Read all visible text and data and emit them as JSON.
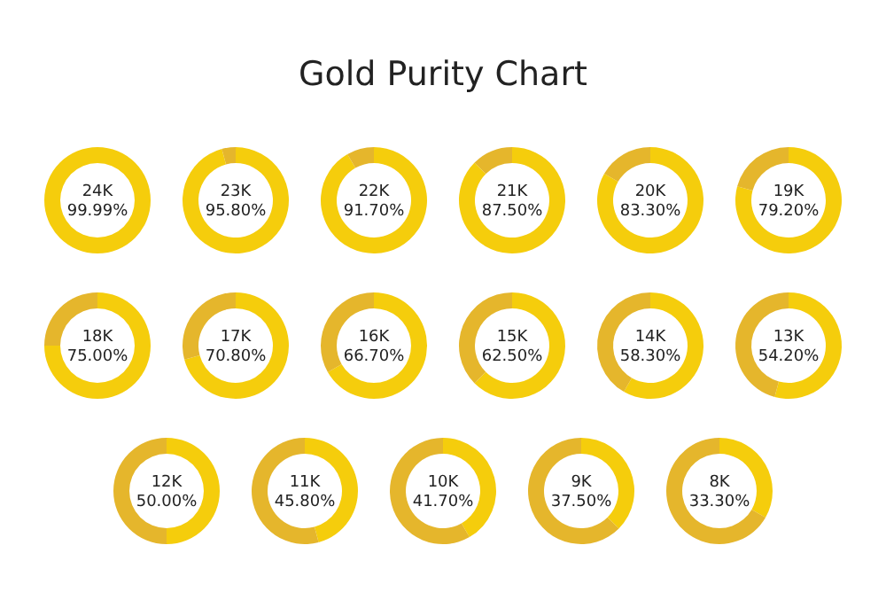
{
  "chart_data": [
    {
      "type": "other",
      "title": "Gold Purity Chart"
    },
    {
      "type": "donut",
      "title": "24K",
      "categories": [
        null
      ],
      "values": [
        99.99
      ],
      "colors": [
        "#f5cd0c"
      ],
      "annotations": [
        "99.99%"
      ]
    },
    {
      "type": "donut",
      "title": "23K",
      "categories": [
        null,
        null
      ],
      "values": [
        95.8,
        4.2
      ],
      "colors": [
        "#f5cd0c",
        "#e5b62c"
      ],
      "annotations": [
        "95.80%"
      ]
    },
    {
      "type": "donut",
      "title": "22K",
      "categories": [
        null,
        null
      ],
      "values": [
        91.7,
        8.3
      ],
      "colors": [
        "#f5cd0c",
        "#e5b62c"
      ],
      "annotations": [
        "91.70%"
      ]
    },
    {
      "type": "donut",
      "title": "21K",
      "categories": [
        null,
        null
      ],
      "values": [
        87.5,
        12.5
      ],
      "colors": [
        "#f5cd0c",
        "#e5b62c"
      ],
      "annotations": [
        "87.50%"
      ]
    },
    {
      "type": "donut",
      "title": "20K",
      "categories": [
        null,
        null
      ],
      "values": [
        83.3,
        16.7
      ],
      "colors": [
        "#f5cd0c",
        "#e5b62c"
      ],
      "annotations": [
        "83.30%"
      ]
    },
    {
      "type": "donut",
      "title": "19K",
      "categories": [
        null,
        null
      ],
      "values": [
        79.2,
        20.8
      ],
      "colors": [
        "#f5cd0c",
        "#e5b62c"
      ],
      "annotations": [
        "79.20%"
      ]
    },
    {
      "type": "donut",
      "title": "18K",
      "categories": [
        null,
        null
      ],
      "values": [
        75.0,
        25.0
      ],
      "colors": [
        "#f5cd0c",
        "#e5b62c"
      ],
      "annotations": [
        "75.00%"
      ]
    },
    {
      "type": "donut",
      "title": "17K",
      "categories": [
        null,
        null
      ],
      "values": [
        70.8,
        29.2
      ],
      "colors": [
        "#f5cd0c",
        "#e5b62c"
      ],
      "annotations": [
        "70.80%"
      ]
    },
    {
      "type": "donut",
      "title": "16K",
      "categories": [
        null,
        null
      ],
      "values": [
        66.7,
        33.3
      ],
      "colors": [
        "#f5cd0c",
        "#e5b62c"
      ],
      "annotations": [
        "66.70%"
      ]
    },
    {
      "type": "donut",
      "title": "15K",
      "categories": [
        null,
        null
      ],
      "values": [
        62.5,
        37.5
      ],
      "colors": [
        "#f5cd0c",
        "#e5b62c"
      ],
      "annotations": [
        "62.50%"
      ]
    },
    {
      "type": "donut",
      "title": "14K",
      "categories": [
        null,
        null
      ],
      "values": [
        58.3,
        41.7
      ],
      "colors": [
        "#f5cd0c",
        "#e5b62c"
      ],
      "annotations": [
        "58.30%"
      ]
    },
    {
      "type": "donut",
      "title": "13K",
      "categories": [
        null,
        null
      ],
      "values": [
        54.2,
        45.8
      ],
      "colors": [
        "#f5cd0c",
        "#e5b62c"
      ],
      "annotations": [
        "54.20%"
      ]
    },
    {
      "type": "donut",
      "title": "12K",
      "categories": [
        null,
        null
      ],
      "values": [
        50.0,
        50.0
      ],
      "colors": [
        "#f5cd0c",
        "#e5b62c"
      ],
      "annotations": [
        "50.00%"
      ]
    },
    {
      "type": "donut",
      "title": "11K",
      "categories": [
        null,
        null
      ],
      "values": [
        45.8,
        54.2
      ],
      "colors": [
        "#f5cd0c",
        "#e5b62c"
      ],
      "annotations": [
        "45.80%"
      ]
    },
    {
      "type": "donut",
      "title": "10K",
      "categories": [
        null,
        null
      ],
      "values": [
        41.7,
        58.3
      ],
      "colors": [
        "#f5cd0c",
        "#e5b62c"
      ],
      "annotations": [
        "41.70%"
      ]
    },
    {
      "type": "donut",
      "title": "9K",
      "categories": [
        null,
        null
      ],
      "values": [
        37.5,
        62.5
      ],
      "colors": [
        "#f5cd0c",
        "#e5b62c"
      ],
      "annotations": [
        "37.50%"
      ]
    },
    {
      "type": "donut",
      "title": "8K",
      "categories": [
        null,
        null
      ],
      "values": [
        33.3,
        66.7
      ],
      "colors": [
        "#f5cd0c",
        "#e5b62c"
      ],
      "annotations": [
        "33.30%"
      ]
    }
  ]
}
